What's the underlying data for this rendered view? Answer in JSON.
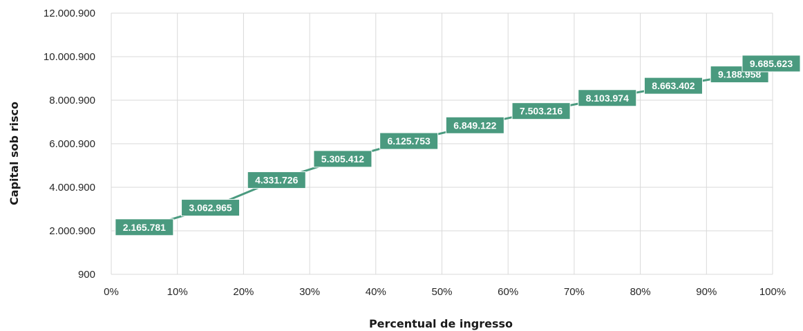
{
  "chart_data": {
    "type": "line",
    "title": "",
    "xlabel": "Percentual de ingresso",
    "ylabel": "Capital sob risco",
    "x": [
      0.05,
      0.15,
      0.25,
      0.35,
      0.45,
      0.55,
      0.65,
      0.75,
      0.85,
      0.95
    ],
    "x_ticks": [
      "0%",
      "10%",
      "20%",
      "30%",
      "40%",
      "50%",
      "60%",
      "70%",
      "80%",
      "90%",
      "100%"
    ],
    "xlim": [
      0,
      1
    ],
    "y_ticks": [
      "900",
      "2.000.900",
      "4.000.900",
      "6.000.900",
      "8.000.900",
      "10.000.900",
      "12.000.900"
    ],
    "ylim": [
      900,
      12000900
    ],
    "grid": true,
    "series": [
      {
        "values": [
          2165781,
          3062965,
          4331726,
          5305412,
          6125753,
          6849122,
          7503216,
          8103974,
          8663402,
          9188958
        ],
        "labels": [
          "2.165.781",
          "3.062.965",
          "4.331.726",
          "5.305.412",
          "6.125.753",
          "6.849.122",
          "7.503.216",
          "8.103.974",
          "8.663.402",
          "9.188.958"
        ],
        "color": "#4a9a7f"
      }
    ],
    "end_point": {
      "value": 9685623,
      "label": "9.685.623"
    }
  }
}
